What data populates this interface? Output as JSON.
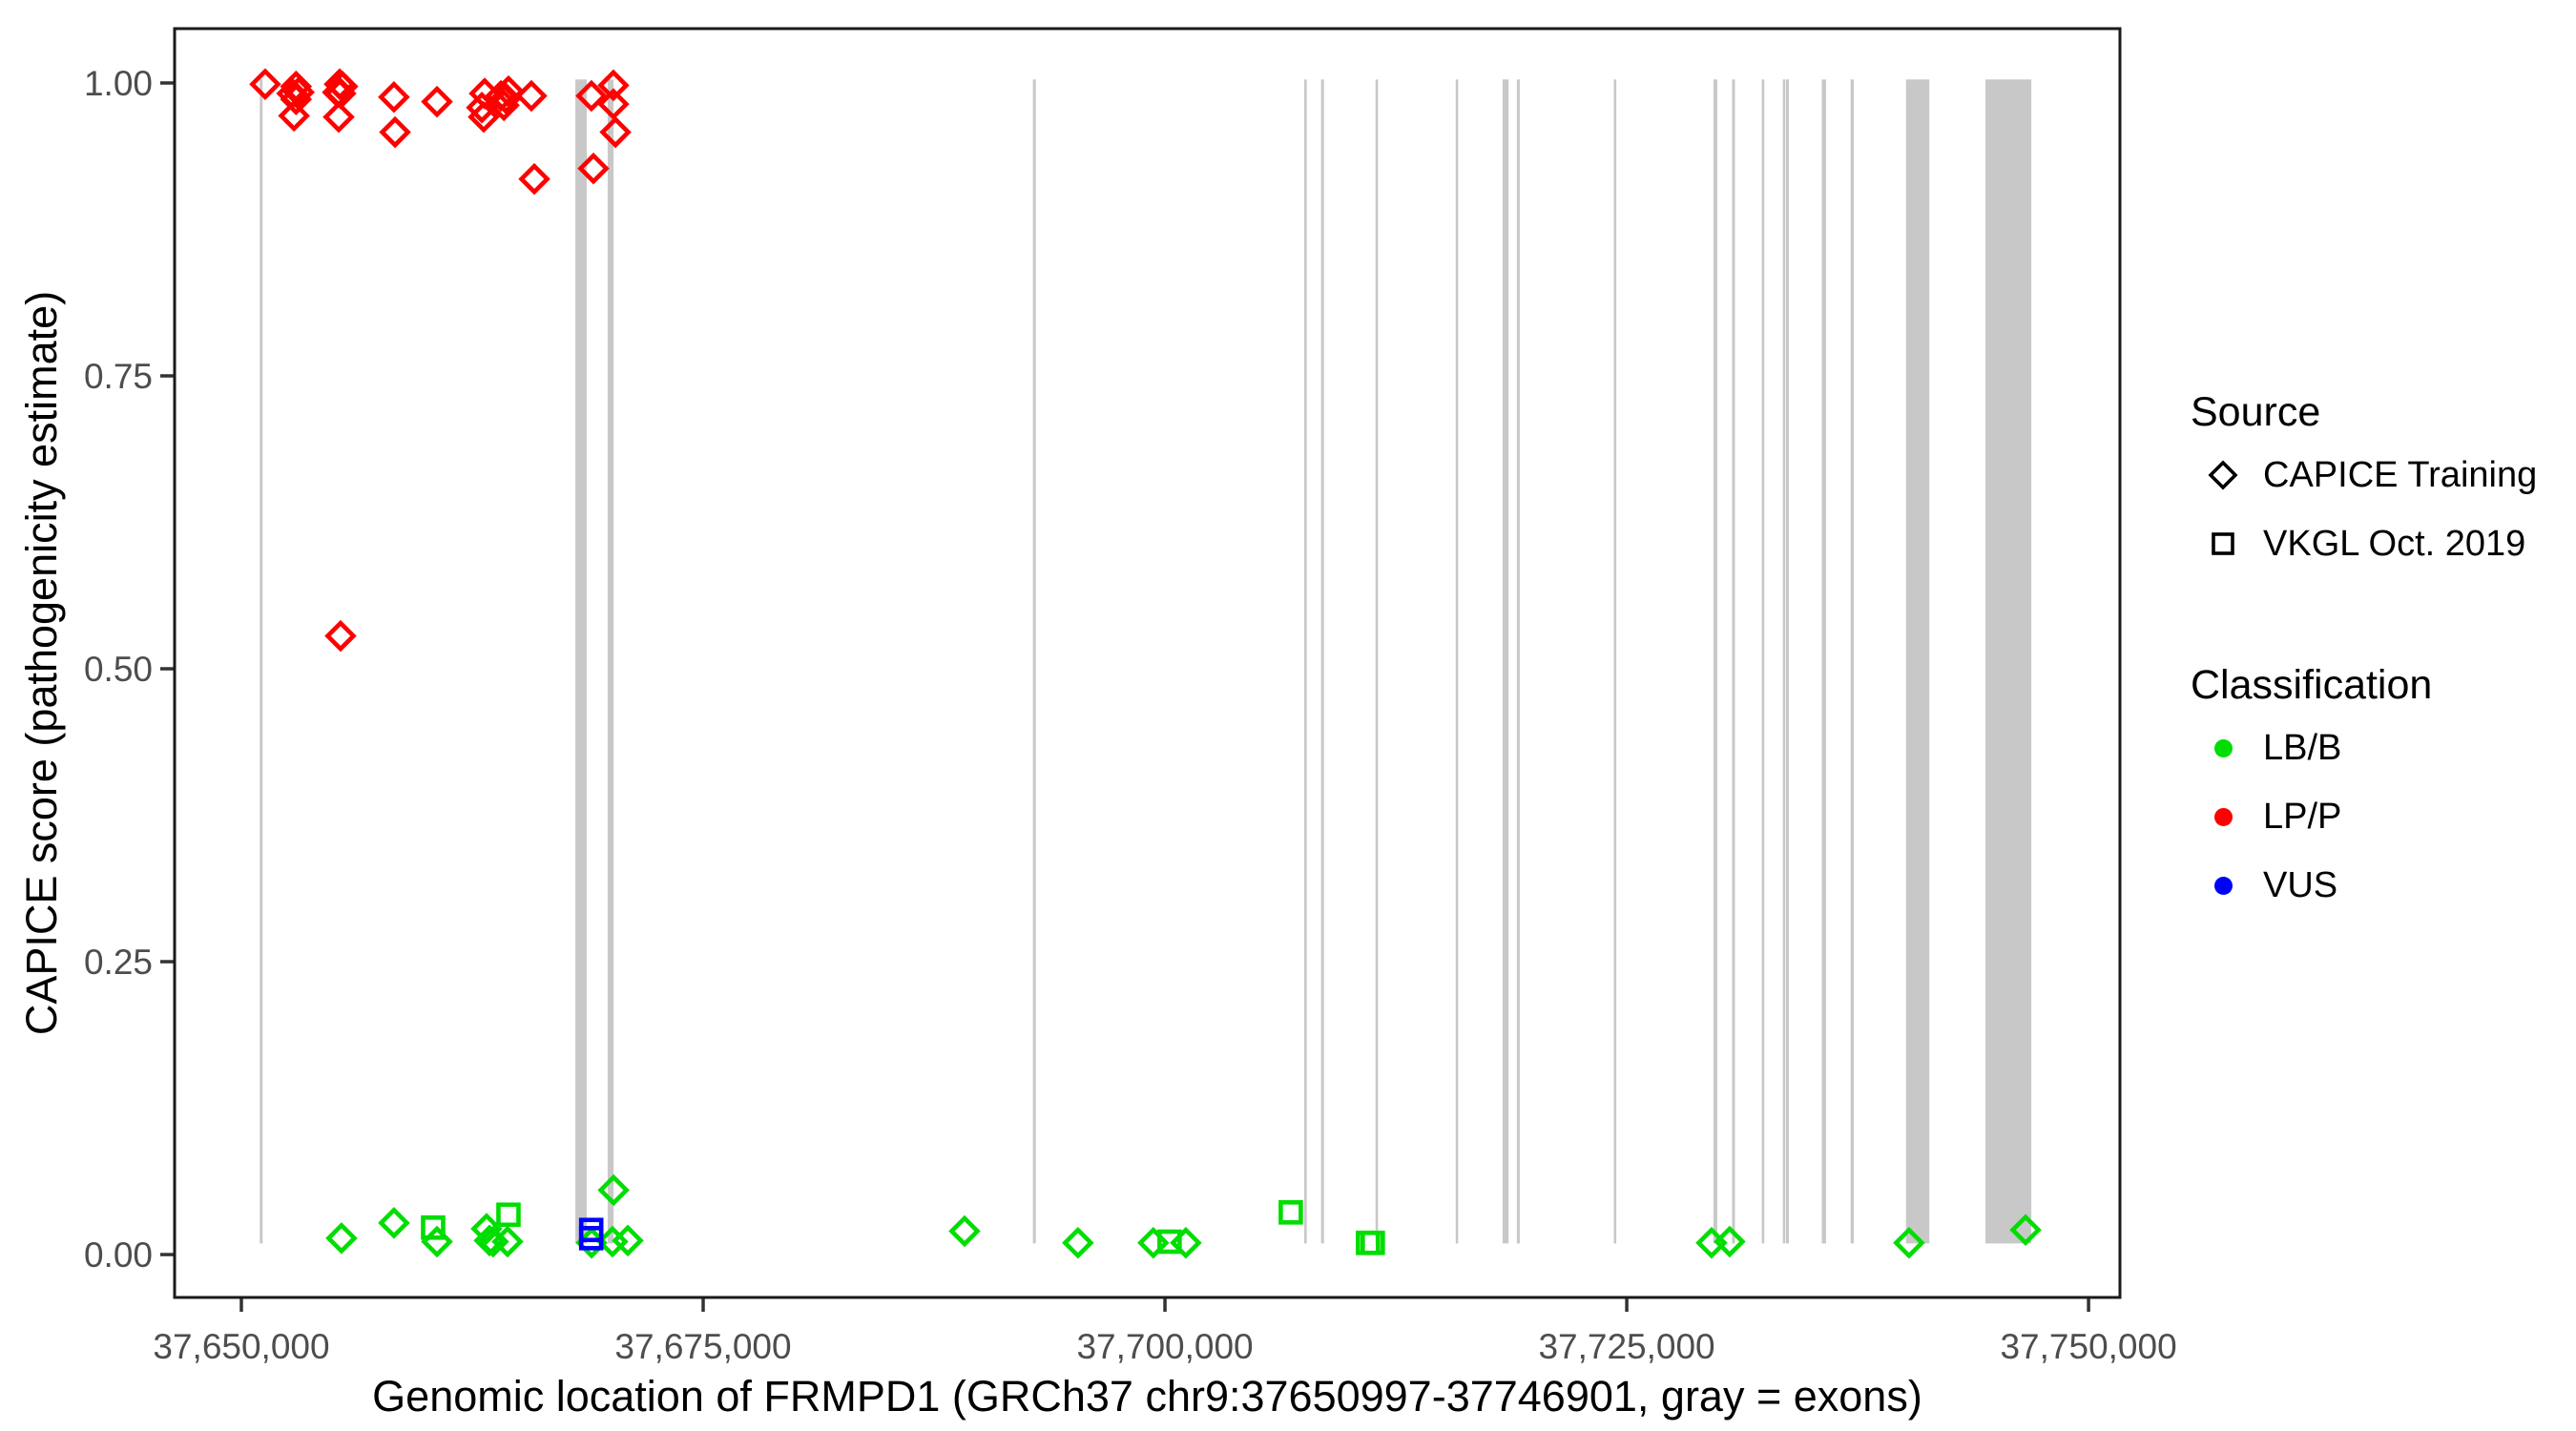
{
  "figure": {
    "x_axis_title": "Genomic location of FRMPD1 (GRCh37 chr9:37650997-37746901, gray = exons)",
    "y_axis_title": "CAPICE score (pathogenicity estimate)"
  },
  "legend": {
    "source": {
      "title": "Source",
      "items": [
        {
          "label": "CAPICE Training",
          "shape": "diamond"
        },
        {
          "label": "VKGL Oct. 2019",
          "shape": "square"
        }
      ]
    },
    "classification": {
      "title": "Classification",
      "items": [
        {
          "label": "LB/B",
          "color": "#00DD00"
        },
        {
          "label": "LP/P",
          "color": "#FF0000"
        },
        {
          "label": "VUS",
          "color": "#0000FF"
        }
      ]
    }
  },
  "chart_data": {
    "type": "scatter",
    "title": "",
    "xlabel": "Genomic location of FRMPD1 (GRCh37 chr9:37650997-37746901, gray = exons)",
    "ylabel": "CAPICE score (pathogenicity estimate)",
    "xlim": [
      37646385,
      37751700
    ],
    "ylim": [
      -0.0366,
      1.0464
    ],
    "grid": false,
    "x_ticks": [
      {
        "value": 37650000,
        "label": "37,650,000"
      },
      {
        "value": 37675000,
        "label": "37,675,000"
      },
      {
        "value": 37700000,
        "label": "37,700,000"
      },
      {
        "value": 37725000,
        "label": "37,725,000"
      },
      {
        "value": 37750000,
        "label": "37,750,000"
      }
    ],
    "y_ticks": [
      {
        "value": 0.0,
        "label": "0.00"
      },
      {
        "value": 0.25,
        "label": "0.25"
      },
      {
        "value": 0.5,
        "label": "0.50"
      },
      {
        "value": 0.75,
        "label": "0.75"
      },
      {
        "value": 1.0,
        "label": "1.00"
      }
    ],
    "exon_color": "#C8C8C8",
    "exon_span_scores": [
      0.0095,
      1.003
    ],
    "gene": {
      "name": "FRMPD1",
      "assembly": "GRCh37",
      "chromosome": "chr9",
      "start": 37650997,
      "end": 37746901
    },
    "exons_bp": [
      [
        37650997,
        37651150
      ],
      [
        37668080,
        37668700
      ],
      [
        37669830,
        37670150
      ],
      [
        37692850,
        37693010
      ],
      [
        37707540,
        37707650
      ],
      [
        37708450,
        37708610
      ],
      [
        37711400,
        37711510
      ],
      [
        37715740,
        37715850
      ],
      [
        37718280,
        37718600
      ],
      [
        37719050,
        37719210
      ],
      [
        37724300,
        37724430
      ],
      [
        37729690,
        37729900
      ],
      [
        37730700,
        37730860
      ],
      [
        37732310,
        37732440
      ],
      [
        37733450,
        37733570
      ],
      [
        37733620,
        37733780
      ],
      [
        37735560,
        37735790
      ],
      [
        37737120,
        37737290
      ],
      [
        37740120,
        37741380
      ],
      [
        37744420,
        37746901
      ]
    ],
    "series": [
      {
        "name": "CAPICE Training / LP-P",
        "source": "CAPICE Training",
        "classification": "LP/P",
        "marker": "diamond",
        "color": "#FF0000",
        "points": [
          [
            37651290,
            0.999
          ],
          [
            37652960,
            0.997
          ],
          [
            37653110,
            0.992
          ],
          [
            37652750,
            0.991
          ],
          [
            37652960,
            0.986
          ],
          [
            37652850,
            0.972
          ],
          [
            37655320,
            0.999
          ],
          [
            37655470,
            0.997
          ],
          [
            37655220,
            0.992
          ],
          [
            37655370,
            0.991
          ],
          [
            37655270,
            0.971
          ],
          [
            37658260,
            0.988
          ],
          [
            37658320,
            0.958
          ],
          [
            37660590,
            0.984
          ],
          [
            37663170,
            0.991
          ],
          [
            37663020,
            0.979
          ],
          [
            37663120,
            0.971
          ],
          [
            37664050,
            0.989
          ],
          [
            37664210,
            0.981
          ],
          [
            37664310,
            0.987
          ],
          [
            37664460,
            0.993
          ],
          [
            37665700,
            0.989
          ],
          [
            37665860,
            0.918
          ],
          [
            37668950,
            0.989
          ],
          [
            37669060,
            0.927
          ],
          [
            37670140,
            0.998
          ],
          [
            37670140,
            0.982
          ],
          [
            37670250,
            0.958
          ],
          [
            37655370,
            0.528
          ]
        ]
      },
      {
        "name": "CAPICE Training / LB-B",
        "source": "CAPICE Training",
        "classification": "LB/B",
        "marker": "diamond",
        "color": "#00DD00",
        "points": [
          [
            37655420,
            0.014
          ],
          [
            37658260,
            0.027
          ],
          [
            37660590,
            0.011
          ],
          [
            37663270,
            0.022
          ],
          [
            37663430,
            0.012
          ],
          [
            37663630,
            0.011
          ],
          [
            37664410,
            0.011
          ],
          [
            37668960,
            0.01
          ],
          [
            37670090,
            0.011
          ],
          [
            37670920,
            0.012
          ],
          [
            37670150,
            0.055
          ],
          [
            37689150,
            0.02
          ],
          [
            37695290,
            0.01
          ],
          [
            37699370,
            0.01
          ],
          [
            37701130,
            0.01
          ],
          [
            37729590,
            0.01
          ],
          [
            37730570,
            0.011
          ],
          [
            37740280,
            0.01
          ],
          [
            37746590,
            0.021
          ]
        ]
      },
      {
        "name": "VKGL Oct. 2019 / LB-B",
        "source": "VKGL Oct. 2019",
        "classification": "LB/B",
        "marker": "square",
        "color": "#00DD00",
        "points": [
          [
            37660380,
            0.023
          ],
          [
            37664460,
            0.034
          ],
          [
            37700250,
            0.011
          ],
          [
            37706810,
            0.036
          ],
          [
            37710990,
            0.01
          ],
          [
            37711250,
            0.01
          ]
        ]
      },
      {
        "name": "VKGL Oct. 2019 / VUS",
        "source": "VKGL Oct. 2019",
        "classification": "VUS",
        "marker": "square",
        "color": "#0000FF",
        "points": [
          [
            37668940,
            0.021
          ],
          [
            37668940,
            0.014
          ]
        ]
      }
    ]
  }
}
